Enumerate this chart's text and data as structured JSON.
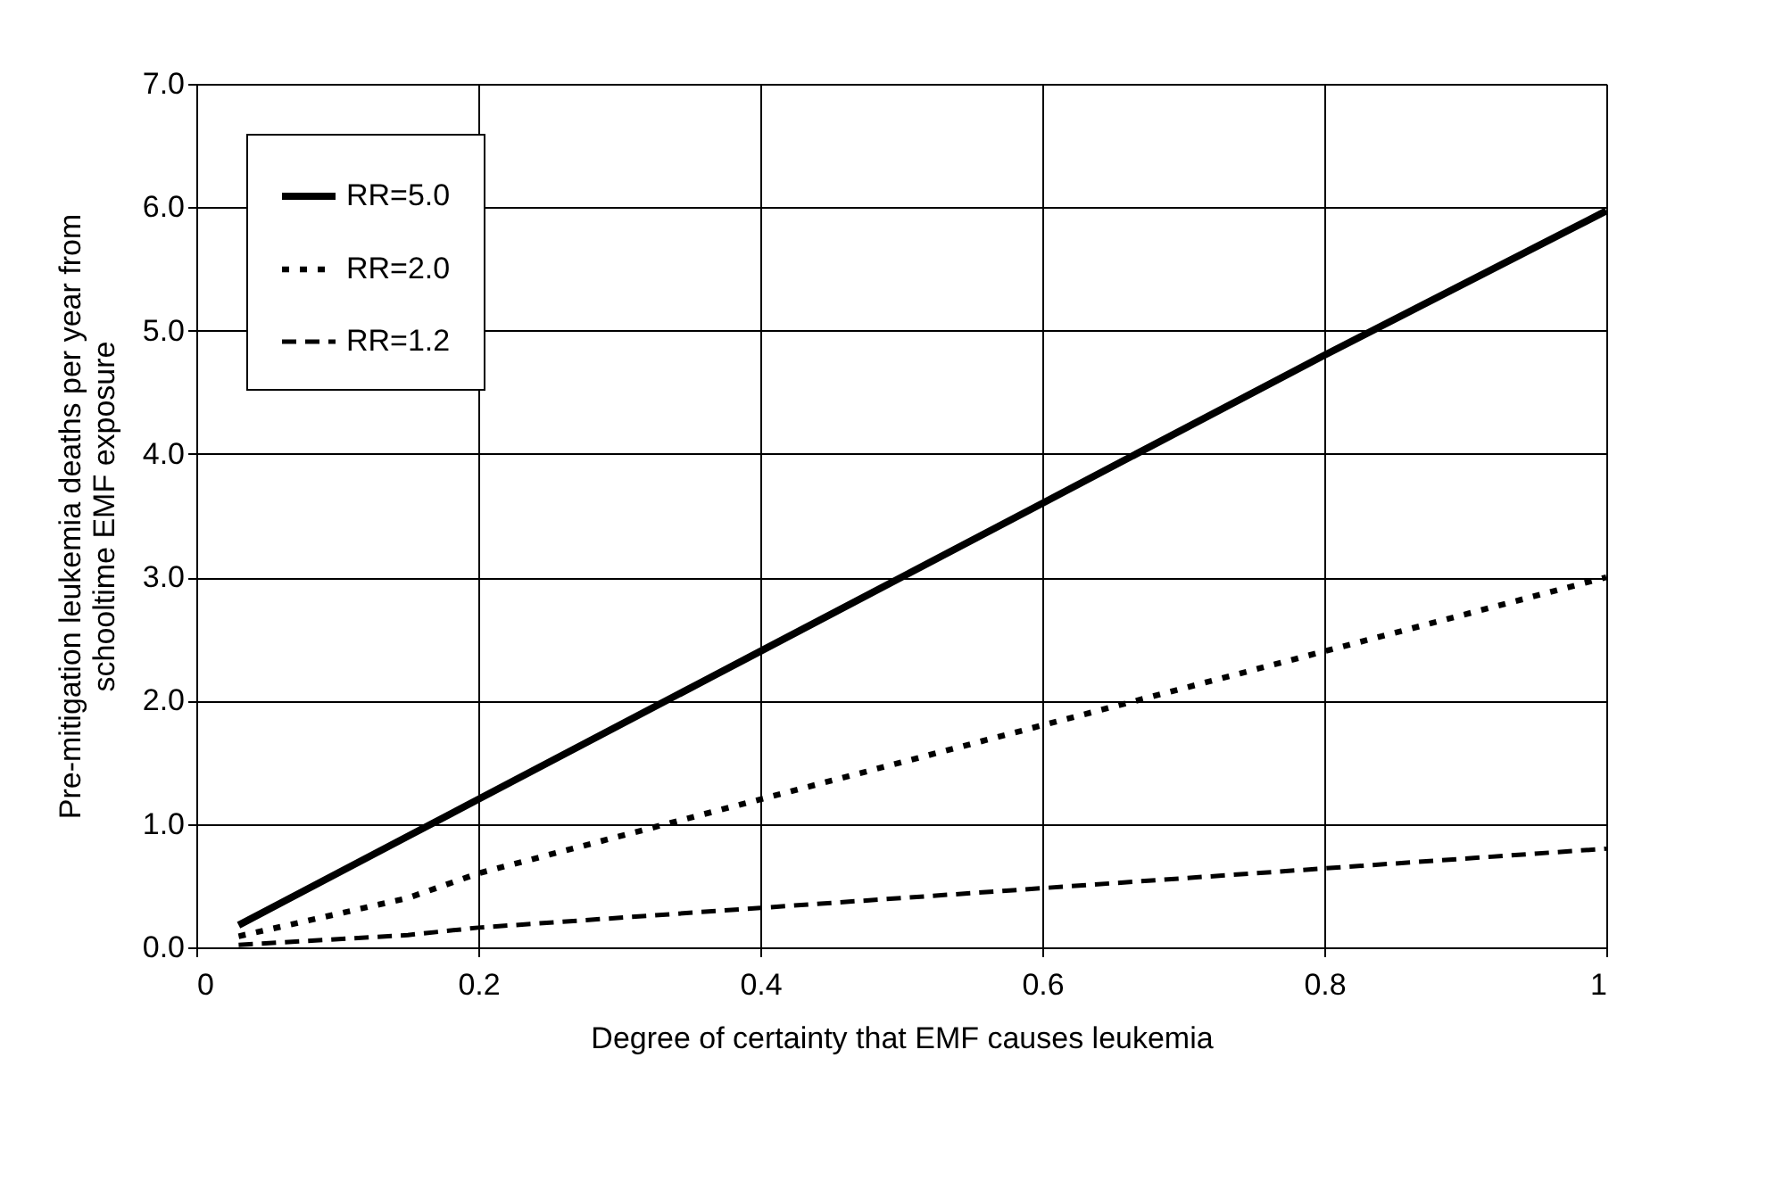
{
  "chart_data": {
    "type": "line",
    "xlabel": "Degree of certainty that EMF causes leukemia",
    "ylabel": "Pre-mitigation leukemia deaths per year from\nschooltime EMF exposure",
    "x": [
      0.03,
      0.15,
      0.2,
      0.4,
      0.6,
      0.8,
      1
    ],
    "series": [
      {
        "name": "RR=5.0",
        "color": "#000000",
        "line_style": "solid",
        "values": [
          0.18,
          0.9,
          1.2,
          2.4,
          3.6,
          4.8,
          5.97
        ]
      },
      {
        "name": "RR=2.0",
        "color": "#000000",
        "line_style": "dotted",
        "values": [
          0.09,
          0.4,
          0.6,
          1.2,
          1.8,
          2.4,
          3.0
        ]
      },
      {
        "name": "RR=1.2",
        "color": "#000000",
        "line_style": "dashed",
        "values": [
          0.02,
          0.1,
          0.16,
          0.32,
          0.48,
          0.64,
          0.8
        ]
      }
    ],
    "xlim": [
      0,
      1
    ],
    "xticks": [
      0,
      {
        "value": 0.2,
        "label": "0.2"
      },
      {
        "value": 0.4,
        "label": "0.4"
      },
      {
        "value": 0.6,
        "label": "0.6"
      },
      {
        "value": 0.8,
        "label": "0.8"
      },
      1
    ],
    "ylim": [
      0,
      7
    ],
    "yticks": [
      {
        "value": 0,
        "label": "0.0"
      },
      {
        "value": 1,
        "label": "1.0"
      },
      {
        "value": 2,
        "label": "2.0"
      },
      {
        "value": 3,
        "label": "3.0"
      },
      {
        "value": 4,
        "label": "4.0"
      },
      {
        "value": 5,
        "label": "5.0"
      },
      {
        "value": 6,
        "label": "6.0"
      },
      {
        "value": 7,
        "label": "7.0"
      }
    ],
    "grid": true,
    "legend": "top left",
    "marker": "none"
  }
}
